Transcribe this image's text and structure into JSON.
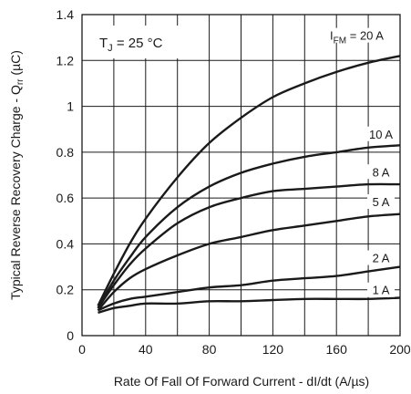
{
  "chart_data": {
    "type": "line",
    "xlabel": "Rate Of Fall Of Forward Current - dI/dt (A/µs)",
    "ylabel": "Typical  Reverse Recovery Charge - Q",
    "ylabel_sub": "rr",
    "ylabel_unit": " (µC)",
    "annotation": {
      "t": "T",
      "sub": "J",
      "rest": " = 25 °C"
    },
    "xlim": [
      0,
      200
    ],
    "ylim": [
      0,
      1.4
    ],
    "x_ticks": [
      "0",
      "40",
      "80",
      "120",
      "160",
      "200"
    ],
    "y_ticks": [
      "0",
      "0.2",
      "0.4",
      "0.6",
      "0.8",
      "1",
      "1.2",
      "1.4"
    ],
    "grid": true,
    "x": [
      10,
      20,
      30,
      40,
      60,
      80,
      100,
      120,
      140,
      160,
      180,
      200
    ],
    "series": [
      {
        "name": "I FM = 20 A",
        "label_main": "I",
        "label_sub": "FM",
        "label_rest": " = 20 A",
        "values": [
          0.13,
          0.27,
          0.4,
          0.51,
          0.69,
          0.84,
          0.95,
          1.04,
          1.1,
          1.15,
          1.19,
          1.22
        ]
      },
      {
        "name": "10 A",
        "label_main": "10 A",
        "label_sub": "",
        "label_rest": "",
        "values": [
          0.12,
          0.24,
          0.34,
          0.43,
          0.56,
          0.65,
          0.71,
          0.75,
          0.78,
          0.8,
          0.82,
          0.83
        ]
      },
      {
        "name": "8 A",
        "label_main": "8 A",
        "label_sub": "",
        "label_rest": "",
        "values": [
          0.12,
          0.22,
          0.31,
          0.38,
          0.49,
          0.56,
          0.6,
          0.63,
          0.64,
          0.65,
          0.66,
          0.66
        ]
      },
      {
        "name": "5 A",
        "label_main": "5 A",
        "label_sub": "",
        "label_rest": "",
        "values": [
          0.11,
          0.19,
          0.25,
          0.29,
          0.35,
          0.4,
          0.43,
          0.46,
          0.48,
          0.5,
          0.52,
          0.53
        ]
      },
      {
        "name": "2 A",
        "label_main": "2 A",
        "label_sub": "",
        "label_rest": "",
        "values": [
          0.11,
          0.14,
          0.16,
          0.17,
          0.19,
          0.21,
          0.22,
          0.24,
          0.25,
          0.26,
          0.28,
          0.3
        ]
      },
      {
        "name": "1 A",
        "label_main": "1 A",
        "label_sub": "",
        "label_rest": "",
        "values": [
          0.1,
          0.12,
          0.13,
          0.14,
          0.14,
          0.15,
          0.15,
          0.155,
          0.16,
          0.16,
          0.16,
          0.165
        ]
      }
    ]
  }
}
